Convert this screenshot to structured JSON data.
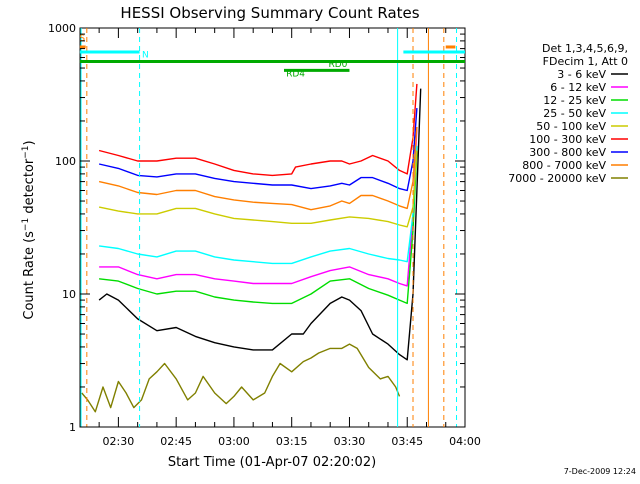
{
  "chart_data": {
    "type": "line",
    "title": "HESSI Observing Summary Count Rates",
    "xlabel": "Start Time (01-Apr-07 02:20:02)",
    "ylabel": "Count Rate (s⁻¹ detector⁻¹)",
    "ylabel_parts": {
      "base": "Count Rate (s",
      "exp1": "−1",
      "mid": " detector",
      "exp2": "−1",
      "end": ")"
    },
    "y_scale": "log",
    "ylim": [
      1,
      1000
    ],
    "y_ticks": [
      {
        "value": 1,
        "label": "1"
      },
      {
        "value": 10,
        "label": "10"
      },
      {
        "value": 100,
        "label": "100"
      },
      {
        "value": 1000,
        "label": "1000"
      }
    ],
    "x_axis": {
      "start": "02:20:02",
      "end": "04:00:00"
    },
    "x_ticks": [
      "02:30",
      "02:45",
      "03:00",
      "03:15",
      "03:30",
      "03:45",
      "04:00"
    ],
    "x_tick_minutes": [
      30,
      45,
      60,
      75,
      90,
      105,
      120
    ],
    "x_range_minutes": [
      20.03,
      120
    ],
    "footer_date": "7-Dec-2009 12:24",
    "legend": {
      "placement": "right",
      "header_lines": [
        "Det 1,3,4,5,6,9,",
        "FDecim 1, Att 0"
      ],
      "entries": [
        {
          "label": "3 - 6 keV",
          "color": "#000000"
        },
        {
          "label": "6 - 12 keV",
          "color": "#ff00ff"
        },
        {
          "label": "12 - 25 keV",
          "color": "#00dd00"
        },
        {
          "label": "25 - 50 keV",
          "color": "#00ffff"
        },
        {
          "label": "50 - 100 keV",
          "color": "#cccc00"
        },
        {
          "label": "100 - 300 keV",
          "color": "#ff0000"
        },
        {
          "label": "300 - 800 keV",
          "color": "#0000ff"
        },
        {
          "label": "800 - 7000 keV",
          "color": "#ff7f00"
        },
        {
          "label": "7000 - 20000 keV",
          "color": "#808000"
        }
      ]
    },
    "series": [
      {
        "name": "3 - 6 keV",
        "color": "#000000",
        "x": [
          25,
          27,
          30,
          35,
          40,
          45,
          50,
          55,
          60,
          65,
          70,
          75,
          78,
          80,
          85,
          88,
          90,
          93,
          96,
          100,
          103,
          105,
          106.5,
          107.5,
          108.5
        ],
        "y": [
          9,
          10,
          9,
          6.5,
          5.3,
          5.6,
          4.8,
          4.3,
          4.0,
          3.8,
          3.8,
          5.0,
          5.0,
          6.0,
          8.5,
          9.5,
          9.0,
          7.5,
          5.0,
          4.2,
          3.5,
          3.2,
          10,
          60,
          350
        ]
      },
      {
        "name": "6 - 12 keV",
        "color": "#ff00ff",
        "x": [
          25,
          30,
          35,
          40,
          45,
          50,
          55,
          60,
          65,
          70,
          75,
          80,
          85,
          90,
          95,
          100,
          103,
          105,
          106.5,
          107.5
        ],
        "y": [
          16,
          16,
          14,
          13,
          14,
          14,
          13,
          12.5,
          12,
          12,
          12,
          13.5,
          15,
          16,
          14,
          13,
          12,
          11.5,
          40,
          180
        ]
      },
      {
        "name": "12 - 25 keV",
        "color": "#00dd00",
        "x": [
          25,
          30,
          35,
          40,
          45,
          50,
          55,
          60,
          65,
          70,
          75,
          80,
          85,
          90,
          95,
          100,
          103,
          105,
          106.5,
          107.5
        ],
        "y": [
          13,
          12.5,
          11,
          10,
          10.5,
          10.5,
          9.5,
          9,
          8.7,
          8.5,
          8.5,
          10,
          12.5,
          13,
          11,
          9.8,
          9,
          8.5,
          30,
          120
        ]
      },
      {
        "name": "25 - 50 keV",
        "color": "#00ffff",
        "x": [
          25,
          30,
          35,
          40,
          45,
          50,
          55,
          60,
          65,
          70,
          75,
          80,
          85,
          90,
          95,
          100,
          103,
          105,
          106.5,
          107.5
        ],
        "y": [
          23,
          22,
          20,
          19,
          21,
          21,
          19,
          18,
          17.5,
          17,
          17,
          19,
          21,
          22,
          20,
          18.5,
          18,
          17.5,
          40,
          130
        ]
      },
      {
        "name": "50 - 100 keV",
        "color": "#cccc00",
        "x": [
          25,
          30,
          35,
          40,
          45,
          50,
          55,
          60,
          65,
          70,
          75,
          80,
          85,
          90,
          95,
          100,
          103,
          105,
          106.5,
          107.5
        ],
        "y": [
          45,
          42,
          40,
          40,
          44,
          44,
          40,
          37,
          36,
          35,
          34,
          34,
          36,
          38,
          37,
          35,
          33,
          32,
          45,
          120
        ]
      },
      {
        "name": "100 - 300 keV",
        "color": "#ff0000",
        "x": [
          25,
          30,
          35,
          40,
          45,
          50,
          55,
          60,
          65,
          70,
          75,
          76,
          80,
          85,
          88,
          90,
          93,
          96,
          100,
          103,
          105,
          106.5,
          107.5
        ],
        "y": [
          120,
          110,
          100,
          100,
          105,
          105,
          95,
          85,
          80,
          78,
          80,
          90,
          95,
          100,
          100,
          95,
          100,
          110,
          100,
          85,
          80,
          150,
          380
        ]
      },
      {
        "name": "300 - 800 keV",
        "color": "#0000ff",
        "x": [
          25,
          30,
          35,
          40,
          45,
          50,
          55,
          60,
          65,
          70,
          75,
          80,
          85,
          88,
          90,
          93,
          96,
          100,
          103,
          105,
          106.5,
          107.5
        ],
        "y": [
          95,
          88,
          78,
          76,
          80,
          80,
          74,
          70,
          68,
          66,
          66,
          62,
          65,
          68,
          66,
          75,
          75,
          68,
          62,
          60,
          100,
          250
        ]
      },
      {
        "name": "800 - 7000 keV",
        "color": "#ff7f00",
        "x": [
          25,
          30,
          35,
          40,
          45,
          50,
          55,
          60,
          65,
          70,
          75,
          80,
          85,
          88,
          90,
          93,
          96,
          100,
          103,
          105,
          106.5,
          107.5
        ],
        "y": [
          70,
          65,
          58,
          56,
          60,
          60,
          54,
          51,
          49,
          48,
          47,
          43,
          46,
          50,
          48,
          55,
          55,
          50,
          46,
          44,
          70,
          180
        ]
      },
      {
        "name": "7000 - 20000 keV",
        "color": "#808000",
        "x": [
          20.5,
          22,
          24,
          26,
          28,
          30,
          32,
          34,
          36,
          38,
          40,
          42,
          45,
          48,
          50,
          52,
          55,
          58,
          60,
          62,
          65,
          68,
          70,
          72,
          75,
          78,
          80,
          82,
          85,
          88,
          90,
          92,
          95,
          98,
          100,
          102,
          103
        ],
        "y": [
          1.8,
          1.6,
          1.3,
          2.0,
          1.4,
          2.2,
          1.8,
          1.4,
          1.6,
          2.3,
          2.6,
          3.0,
          2.3,
          1.6,
          1.8,
          2.4,
          1.8,
          1.5,
          1.7,
          2.0,
          1.6,
          1.8,
          2.4,
          3.0,
          2.6,
          3.1,
          3.3,
          3.6,
          3.9,
          3.9,
          4.2,
          3.9,
          2.8,
          2.3,
          2.4,
          2.0,
          1.7
        ]
      }
    ],
    "annotations": {
      "segment_labels": [
        {
          "label": "S",
          "color": "#ff7f00",
          "x": 20.6,
          "y": 800
        },
        {
          "label": "N",
          "color": "#00ffff",
          "x": 37,
          "y": 600
        },
        {
          "label": "RD0",
          "color": "#00aa00",
          "x": 87,
          "y": 510
        },
        {
          "label": "RD4",
          "color": "#00aa00",
          "x": 76,
          "y": 430
        }
      ],
      "flag_lines": [
        {
          "color": "#00ffff",
          "x0": 20,
          "x1": 35.5,
          "y": 660
        },
        {
          "color": "#00ffff",
          "x0": 104,
          "x1": 120,
          "y": 660
        },
        {
          "color": "#00aa00",
          "x0": 20,
          "x1": 120,
          "y": 560
        },
        {
          "color": "#00aa00",
          "x0": 73,
          "x1": 90,
          "y": 480
        },
        {
          "color": "#ff7f00",
          "x0": 20,
          "x1": 21.5,
          "y": 720
        },
        {
          "color": "#ff7f00",
          "x0": 115,
          "x1": 117.5,
          "y": 720
        }
      ],
      "vertical_markers": [
        {
          "color": "#00ffff",
          "x": 20.3,
          "dash": false
        },
        {
          "color": "#ff7f00",
          "x": 21.8,
          "dash": true
        },
        {
          "color": "#00ffff",
          "x": 35.5,
          "dash": true
        },
        {
          "color": "#00ffff",
          "x": 102.5,
          "dash": false
        },
        {
          "color": "#ff7f00",
          "x": 106.5,
          "dash": true
        },
        {
          "color": "#ff7f00",
          "x": 110.5,
          "dash": false
        },
        {
          "color": "#ff7f00",
          "x": 114.5,
          "dash": true
        },
        {
          "color": "#00ffff",
          "x": 117.8,
          "dash": true
        }
      ]
    }
  }
}
